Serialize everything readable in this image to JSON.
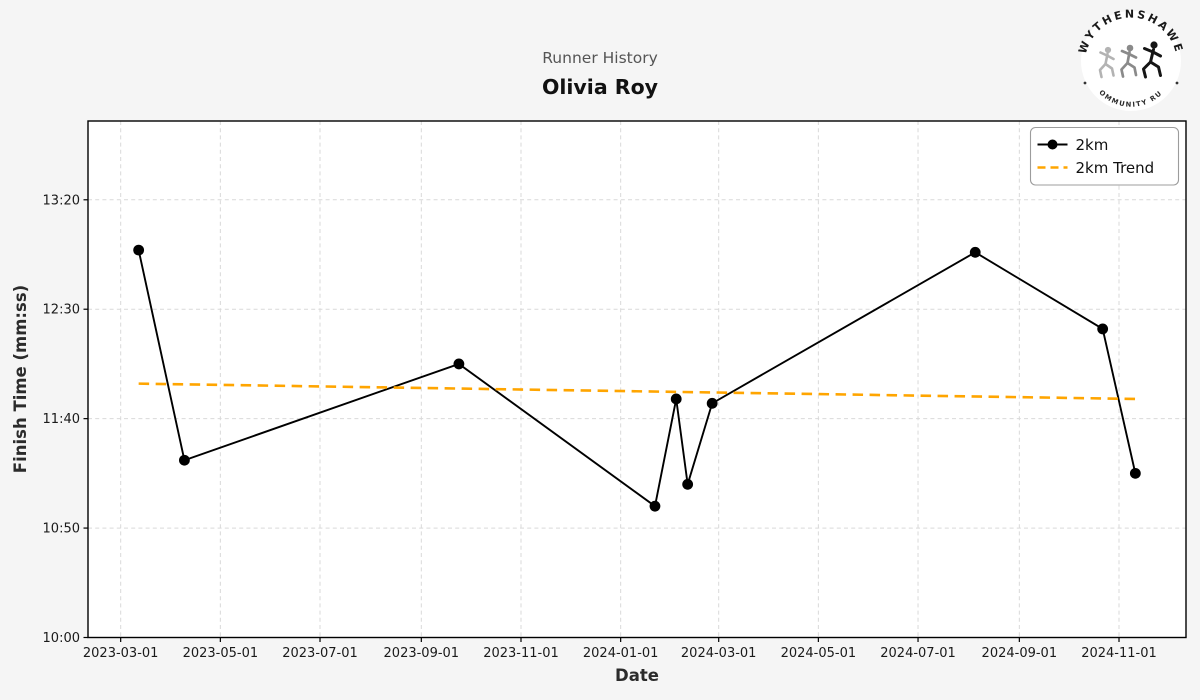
{
  "header": {
    "suptitle": "Runner History",
    "title": "Olivia Roy"
  },
  "logo": {
    "top_text": "WYTHENSHAWE",
    "bottom_text": "COMMUNITY RUN"
  },
  "chart_data": {
    "type": "line",
    "title": "Olivia Roy",
    "suptitle": "Runner History",
    "xlabel": "Date",
    "ylabel": "Finish Time (mm:ss)",
    "grid": true,
    "legend_position": "upper-right",
    "x_ticks": [
      "2023-03-01",
      "2023-05-01",
      "2023-07-01",
      "2023-09-01",
      "2023-11-01",
      "2024-01-01",
      "2024-03-01",
      "2024-05-01",
      "2024-07-01",
      "2024-09-01",
      "2024-11-01"
    ],
    "y_ticks": [
      "10:00",
      "10:50",
      "11:40",
      "12:30",
      "13:20"
    ],
    "x_range": [
      "2023-02-09",
      "2024-12-12"
    ],
    "y_range": [
      "10:00",
      "13:56"
    ],
    "series": [
      {
        "name": "2km",
        "style": "solid",
        "markers": true,
        "color": "#000000",
        "points": [
          {
            "date": "2023-03-12",
            "time": "12:57"
          },
          {
            "date": "2023-04-09",
            "time": "11:21"
          },
          {
            "date": "2023-09-24",
            "time": "12:05"
          },
          {
            "date": "2024-01-22",
            "time": "11:00"
          },
          {
            "date": "2024-02-04",
            "time": "11:49"
          },
          {
            "date": "2024-02-11",
            "time": "11:10"
          },
          {
            "date": "2024-02-26",
            "time": "11:47"
          },
          {
            "date": "2024-08-05",
            "time": "12:56"
          },
          {
            "date": "2024-10-22",
            "time": "12:21"
          },
          {
            "date": "2024-11-11",
            "time": "11:15"
          }
        ]
      },
      {
        "name": "2km Trend",
        "style": "dashed",
        "markers": false,
        "color": "#FFA500",
        "points": [
          {
            "date": "2023-03-12",
            "time": "11:56"
          },
          {
            "date": "2024-11-11",
            "time": "11:49"
          }
        ]
      }
    ]
  },
  "colors": {
    "figure_bg": "#f5f5f5",
    "plot_bg": "#ffffff",
    "grid": "#d9d9d9",
    "spine": "#000000",
    "trend": "#FFA500",
    "suptitle": "#555555"
  }
}
